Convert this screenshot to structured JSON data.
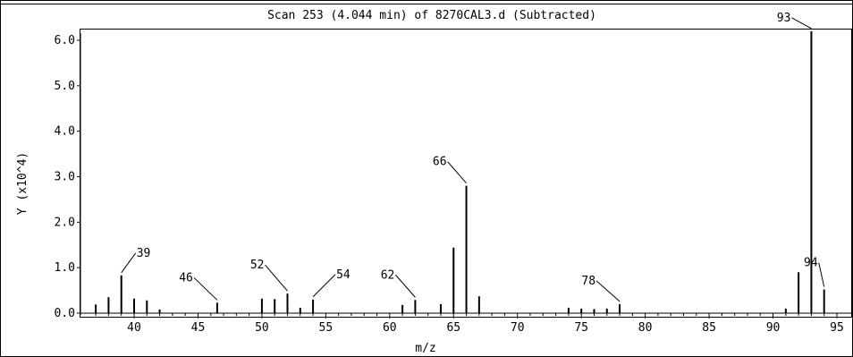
{
  "chart_data": {
    "type": "bar",
    "title": "Scan 253 (4.044 min) of 8270CAL3.d (Subtracted)",
    "xlabel": "m/z",
    "ylabel": "Y (x10^4)",
    "xlim": [
      36,
      95
    ],
    "ylim": [
      0,
      6.2
    ],
    "x_ticks": [
      40,
      45,
      50,
      55,
      60,
      65,
      70,
      75,
      80,
      85,
      90,
      95
    ],
    "y_ticks": [
      0,
      1,
      2,
      3,
      4,
      5,
      6
    ],
    "y_tick_labels": [
      "0.0",
      "1.0",
      "2.0",
      "3.0",
      "4.0",
      "5.0",
      "6.0"
    ],
    "peaks": [
      {
        "mz": 37,
        "y": 0.19
      },
      {
        "mz": 38,
        "y": 0.35
      },
      {
        "mz": 39,
        "y": 0.83
      },
      {
        "mz": 40,
        "y": 0.32
      },
      {
        "mz": 41,
        "y": 0.28
      },
      {
        "mz": 42,
        "y": 0.08
      },
      {
        "mz": 46.5,
        "y": 0.23
      },
      {
        "mz": 50,
        "y": 0.32
      },
      {
        "mz": 51,
        "y": 0.31
      },
      {
        "mz": 52,
        "y": 0.43
      },
      {
        "mz": 53,
        "y": 0.12
      },
      {
        "mz": 54,
        "y": 0.3
      },
      {
        "mz": 61,
        "y": 0.18
      },
      {
        "mz": 62,
        "y": 0.29
      },
      {
        "mz": 64,
        "y": 0.2
      },
      {
        "mz": 65,
        "y": 1.44
      },
      {
        "mz": 66,
        "y": 2.8
      },
      {
        "mz": 67,
        "y": 0.37
      },
      {
        "mz": 74,
        "y": 0.12
      },
      {
        "mz": 75,
        "y": 0.1
      },
      {
        "mz": 76,
        "y": 0.09
      },
      {
        "mz": 77,
        "y": 0.1
      },
      {
        "mz": 78,
        "y": 0.2
      },
      {
        "mz": 91,
        "y": 0.1
      },
      {
        "mz": 92,
        "y": 0.9
      },
      {
        "mz": 93,
        "y": 6.2
      },
      {
        "mz": 94,
        "y": 0.52
      }
    ],
    "annotations": [
      {
        "label": "39",
        "mz": 39,
        "dx": 16,
        "dy": -22
      },
      {
        "label": "46",
        "mz": 46.5,
        "dx": -26,
        "dy": -25
      },
      {
        "label": "52",
        "mz": 52,
        "dx": -25,
        "dy": -29
      },
      {
        "label": "54",
        "mz": 54,
        "dx": 25,
        "dy": -25
      },
      {
        "label": "62",
        "mz": 62,
        "dx": -22,
        "dy": -25
      },
      {
        "label": "66",
        "mz": 66,
        "dx": -21,
        "dy": -24
      },
      {
        "label": "78",
        "mz": 78,
        "dx": -26,
        "dy": -23
      },
      {
        "label": "93",
        "mz": 93,
        "dx": -22,
        "dy": -12
      },
      {
        "label": "94",
        "mz": 94,
        "dx": -6,
        "dy": -27
      }
    ]
  }
}
